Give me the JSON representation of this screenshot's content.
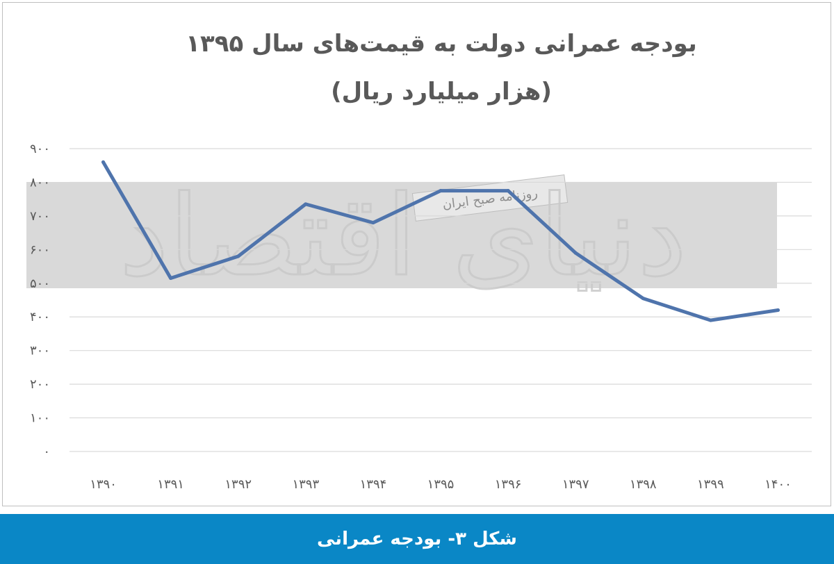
{
  "chart_data": {
    "type": "line",
    "title": "بودجه عمرانی دولت به قیمت‌های سال ۱۳۹۵",
    "subtitle": "(هزار میلیارد ریال)",
    "categories": [
      "۱۳۹۰",
      "۱۳۹۱",
      "۱۳۹۲",
      "۱۳۹۳",
      "۱۳۹۴",
      "۱۳۹۵",
      "۱۳۹۶",
      "۱۳۹۷",
      "۱۳۹۸",
      "۱۳۹۹",
      "۱۴۰۰"
    ],
    "series": [
      {
        "values": [
          860,
          515,
          580,
          735,
          680,
          775,
          775,
          590,
          455,
          390,
          420
        ],
        "color": "#4f74ac"
      }
    ],
    "y_ticks": [
      "۰",
      "۱۰۰",
      "۲۰۰",
      "۳۰۰",
      "۴۰۰",
      "۵۰۰",
      "۶۰۰",
      "۷۰۰",
      "۸۰۰",
      "۹۰۰"
    ],
    "ylim": [
      0,
      900
    ],
    "grid": true,
    "legend": "none"
  },
  "caption": {
    "text": "شکل ۳- بودجه عمرانی",
    "background": "#0a87c6"
  },
  "watermark": {
    "publisher": "دنیای اقتصاد",
    "label": "روزنامه صبح ایران"
  }
}
